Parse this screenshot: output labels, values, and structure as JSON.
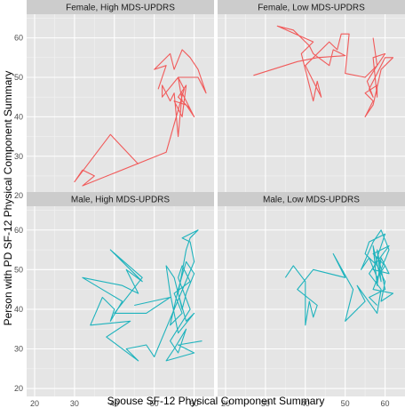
{
  "chart_data": {
    "type": "line",
    "xlabel": "Spouse SF-12 Physical Component Summary",
    "ylabel": "Person with PD SF-12 Physical Component Summary",
    "xlim": [
      18,
      65
    ],
    "ylim": [
      18,
      66
    ],
    "x_ticks": [
      20,
      30,
      40,
      50,
      60
    ],
    "y_ticks": [
      20,
      30,
      40,
      50,
      60
    ],
    "grid": true,
    "panel_background": "#e5e5e5",
    "strip_background": "#cccccc",
    "panels": [
      {
        "title": "Female, High MDS-UPDRS",
        "color": "#f15a5a",
        "values": [
          [
            46,
            28
          ],
          [
            39,
            35.5
          ],
          [
            30,
            23.5
          ],
          [
            32,
            26.5
          ],
          [
            35,
            25
          ],
          [
            32,
            22.5
          ],
          [
            53,
            31
          ],
          [
            57.5,
            47
          ],
          [
            56,
            50
          ],
          [
            57,
            44
          ],
          [
            59,
            42
          ],
          [
            56,
            45
          ],
          [
            58,
            48
          ],
          [
            57,
            40
          ],
          [
            55,
            44
          ],
          [
            58,
            43
          ],
          [
            60,
            40
          ],
          [
            57,
            46
          ],
          [
            56,
            35
          ],
          [
            55,
            46
          ],
          [
            54,
            44
          ],
          [
            52,
            48
          ],
          [
            52,
            45
          ],
          [
            56,
            50
          ],
          [
            61,
            50
          ],
          [
            63,
            46
          ],
          [
            61,
            52
          ],
          [
            59,
            55
          ],
          [
            57,
            57
          ],
          [
            55,
            52
          ],
          [
            54,
            56
          ],
          [
            50,
            52
          ],
          [
            53,
            53
          ],
          [
            51,
            47
          ]
        ]
      },
      {
        "title": "Female, Low MDS-UPDRS",
        "color": "#f15a5a",
        "values": [
          [
            27,
            50.5
          ],
          [
            38,
            54
          ],
          [
            43,
            55
          ],
          [
            50,
            55.5
          ],
          [
            47,
            57
          ],
          [
            46,
            53
          ],
          [
            42,
            56
          ],
          [
            41,
            58
          ],
          [
            37,
            62
          ],
          [
            33,
            63
          ],
          [
            42,
            59
          ],
          [
            39,
            56
          ],
          [
            42,
            44
          ],
          [
            43,
            49
          ],
          [
            44,
            45
          ],
          [
            40,
            53
          ],
          [
            46,
            59
          ],
          [
            48,
            57
          ],
          [
            49,
            61
          ],
          [
            51,
            61
          ],
          [
            50,
            51
          ],
          [
            55,
            50
          ],
          [
            58,
            53
          ],
          [
            55.5,
            49
          ],
          [
            57,
            45
          ],
          [
            56,
            47
          ],
          [
            58,
            51
          ],
          [
            60,
            55
          ],
          [
            62,
            55
          ],
          [
            59,
            52
          ],
          [
            57,
            43
          ],
          [
            55,
            40
          ],
          [
            57,
            44
          ],
          [
            55,
            46
          ],
          [
            58,
            48
          ],
          [
            58,
            45
          ],
          [
            57,
            55
          ],
          [
            60,
            56
          ],
          [
            58,
            53
          ],
          [
            57,
            60
          ]
        ]
      },
      {
        "title": "Male, High MDS-UPDRS",
        "color": "#1fb3bd",
        "values": [
          [
            62,
            32
          ],
          [
            56,
            31
          ],
          [
            60,
            29
          ],
          [
            53,
            27
          ],
          [
            55,
            30
          ],
          [
            58,
            35
          ],
          [
            56,
            29
          ],
          [
            54,
            32
          ],
          [
            59,
            40
          ],
          [
            56,
            48
          ],
          [
            57,
            51
          ],
          [
            59,
            47
          ],
          [
            55,
            44
          ],
          [
            57,
            39
          ],
          [
            54,
            36
          ],
          [
            56,
            45
          ],
          [
            58,
            52
          ],
          [
            60,
            49
          ],
          [
            58,
            44
          ],
          [
            57,
            40
          ],
          [
            55,
            48
          ],
          [
            53,
            51
          ],
          [
            54,
            44
          ],
          [
            56,
            34
          ],
          [
            60,
            39
          ],
          [
            58,
            37
          ],
          [
            56,
            44
          ],
          [
            58,
            55
          ],
          [
            59,
            58
          ],
          [
            61,
            60
          ],
          [
            57,
            58
          ],
          [
            59,
            57
          ],
          [
            60,
            52
          ],
          [
            50,
            28
          ],
          [
            48,
            31
          ],
          [
            43,
            30
          ],
          [
            46,
            27
          ],
          [
            38,
            33
          ],
          [
            44,
            37
          ],
          [
            34,
            36
          ],
          [
            37,
            43
          ],
          [
            40,
            40
          ],
          [
            39,
            37
          ],
          [
            42,
            42
          ],
          [
            32,
            48
          ],
          [
            42,
            46
          ],
          [
            46,
            44
          ],
          [
            43,
            50
          ],
          [
            47,
            47
          ],
          [
            39,
            55
          ],
          [
            47,
            48
          ],
          [
            40,
            39
          ],
          [
            48,
            39
          ],
          [
            54,
            43
          ],
          [
            45,
            41
          ]
        ]
      },
      {
        "title": "Male, Low MDS-UPDRS",
        "color": "#1fb3bd",
        "values": [
          [
            35,
            48
          ],
          [
            37,
            51
          ],
          [
            40,
            47
          ],
          [
            40,
            36
          ],
          [
            41,
            42
          ],
          [
            42,
            38
          ],
          [
            43,
            41
          ],
          [
            38,
            45
          ],
          [
            42,
            50
          ],
          [
            50,
            48
          ],
          [
            47,
            54
          ],
          [
            52,
            45
          ],
          [
            50,
            37
          ],
          [
            55,
            42
          ],
          [
            53,
            46
          ],
          [
            58,
            39
          ],
          [
            59,
            45
          ],
          [
            56,
            49
          ],
          [
            58,
            52
          ],
          [
            61,
            56
          ],
          [
            57,
            54
          ],
          [
            60,
            51
          ],
          [
            58,
            48
          ],
          [
            56,
            53
          ],
          [
            54,
            50
          ],
          [
            57,
            57
          ],
          [
            59,
            60
          ],
          [
            61,
            55
          ],
          [
            57,
            45
          ],
          [
            62,
            44
          ],
          [
            59,
            42
          ],
          [
            60,
            47
          ],
          [
            58,
            51
          ],
          [
            55,
            54
          ],
          [
            56,
            57
          ],
          [
            60,
            59
          ],
          [
            57,
            50
          ],
          [
            61,
            49
          ],
          [
            59,
            53
          ],
          [
            58,
            46
          ],
          [
            57,
            56
          ],
          [
            59,
            47
          ],
          [
            58,
            55
          ],
          [
            60,
            45
          ],
          [
            56,
            43
          ],
          [
            58,
            41
          ]
        ]
      }
    ]
  }
}
